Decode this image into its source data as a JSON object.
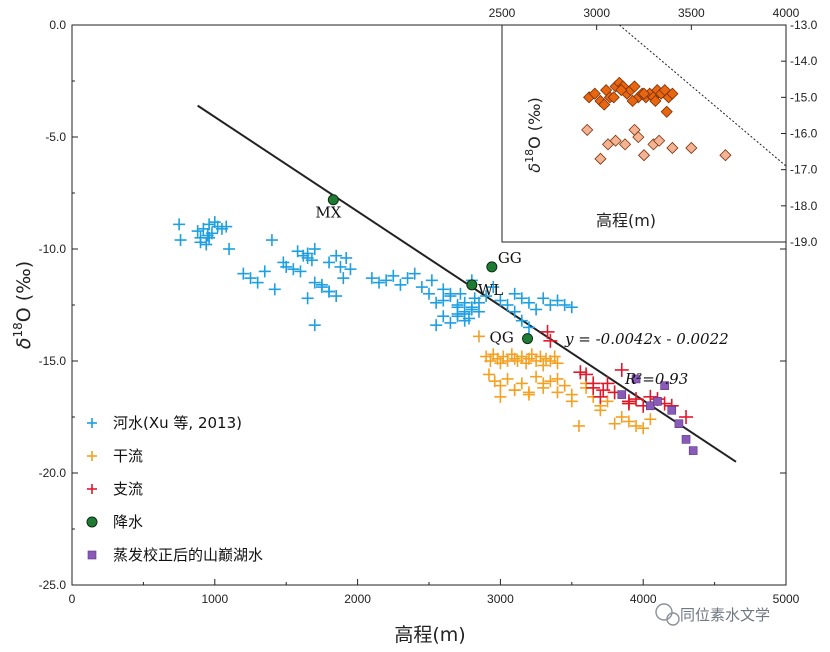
{
  "chart_data": [
    {
      "type": "scatter",
      "xlabel": "高程(m)",
      "ylabel_base": "δ",
      "ylabel_sup": "18",
      "ylabel_tail": "O (‰)",
      "xlim": [
        0,
        5000
      ],
      "ylim": [
        -25,
        0
      ],
      "xticks": [
        0,
        1000,
        2000,
        3000,
        4000,
        5000
      ],
      "xtick_labels": [
        "0",
        "1000",
        "2000",
        "3000",
        "4000",
        "5000"
      ],
      "yticks": [
        0,
        -5,
        -10,
        -15,
        -20,
        -25
      ],
      "ytick_labels": [
        "0.0",
        "-5.0",
        "-10.0",
        "-15.0",
        "-20.0",
        "-25.0"
      ],
      "regression_line": {
        "x": [
          880,
          4650
        ],
        "y": [
          -3.6,
          -19.5
        ]
      },
      "equation": "y = -0.0042x - 0.0022",
      "r2": "R²=0.93",
      "series": [
        {
          "name": "河水(Xu 等, 2013)",
          "marker": "plus",
          "color": "#1e9fe0",
          "x": [
            750,
            760,
            880,
            900,
            920,
            940,
            960,
            980,
            1000,
            1050,
            1080,
            900,
            950,
            1020,
            960,
            1100,
            1200,
            1250,
            1300,
            1350,
            1400,
            1420,
            1480,
            1500,
            1550,
            1600,
            1650,
            1650,
            1700,
            1750,
            1800,
            1850,
            1900,
            1920,
            1950,
            1580,
            1620,
            1680,
            1700,
            1800,
            1850,
            1880,
            1700,
            1650,
            1750,
            1800,
            2100,
            2150,
            2200,
            2250,
            2300,
            2350,
            2400,
            2450,
            2500,
            2520,
            2550,
            2600,
            2650,
            2700,
            2720,
            2750,
            2780,
            2800,
            2820,
            2850,
            2900,
            2950,
            3000,
            3050,
            3100,
            3150,
            3200,
            3250,
            3300,
            3350,
            3400,
            3450,
            3500,
            2600,
            2650,
            2700,
            2750,
            2800,
            2550,
            2600,
            2700,
            2750,
            2800,
            2850,
            2650,
            2700,
            2750,
            3100,
            3150,
            3200
          ],
          "y": [
            -8.9,
            -9.6,
            -9.2,
            -9.5,
            -9.1,
            -9.8,
            -8.9,
            -9.3,
            -8.8,
            -9.1,
            -9.0,
            -9.7,
            -9.4,
            -9.0,
            -9.5,
            -10.0,
            -11.1,
            -11.3,
            -11.5,
            -11.0,
            -9.6,
            -11.8,
            -10.6,
            -10.8,
            -10.9,
            -11.0,
            -10.2,
            -10.4,
            -11.5,
            -11.7,
            -11.9,
            -12.1,
            -11.3,
            -10.4,
            -10.9,
            -10.1,
            -10.3,
            -10.5,
            -10.0,
            -10.6,
            -10.3,
            -10.8,
            -13.4,
            -12.2,
            -11.6,
            -11.9,
            -11.3,
            -11.5,
            -11.4,
            -11.2,
            -11.6,
            -11.3,
            -11.1,
            -11.7,
            -12.0,
            -11.4,
            -12.4,
            -11.8,
            -12.1,
            -12.5,
            -12.0,
            -12.8,
            -13.1,
            -12.6,
            -12.2,
            -12.4,
            -12.1,
            -11.7,
            -12.3,
            -12.5,
            -12.0,
            -12.2,
            -12.4,
            -12.7,
            -12.2,
            -12.5,
            -12.3,
            -12.5,
            -12.6,
            -13.0,
            -13.3,
            -12.9,
            -13.2,
            -12.7,
            -13.4,
            -12.3,
            -12.6,
            -12.9,
            -11.4,
            -12.8,
            -12.0,
            -13.0,
            -12.4,
            -12.8,
            -13.2,
            -13.5
          ]
        },
        {
          "name": "干流",
          "marker": "plus",
          "color": "#f5a020",
          "x": [
            2850,
            2900,
            2930,
            2950,
            2980,
            3000,
            3020,
            3050,
            3080,
            3100,
            3120,
            3150,
            3180,
            3200,
            3220,
            3250,
            3280,
            3300,
            3320,
            3350,
            3380,
            3400,
            2920,
            2960,
            3000,
            3050,
            3100,
            3150,
            3200,
            3250,
            3300,
            3350,
            3400,
            3450,
            3500,
            3550,
            3600,
            3650,
            3700,
            3750,
            3800,
            3850,
            3900,
            3950,
            4000,
            4050,
            3000,
            3100,
            3200,
            3300,
            3400,
            3500,
            3600,
            3700,
            3800,
            3900
          ],
          "y": [
            -13.9,
            -14.8,
            -15.0,
            -14.7,
            -14.9,
            -15.1,
            -14.8,
            -15.0,
            -14.7,
            -14.9,
            -15.0,
            -14.8,
            -15.1,
            -14.9,
            -14.7,
            -15.0,
            -14.8,
            -15.2,
            -14.9,
            -15.0,
            -14.8,
            -15.1,
            -15.6,
            -15.9,
            -16.1,
            -15.8,
            -16.3,
            -16.0,
            -16.4,
            -15.7,
            -16.2,
            -15.9,
            -16.4,
            -16.1,
            -16.5,
            -17.9,
            -16.0,
            -16.6,
            -17.2,
            -16.8,
            -17.8,
            -17.5,
            -17.7,
            -17.9,
            -18.0,
            -17.6,
            -16.6,
            -16.3,
            -16.5,
            -16.0,
            -15.8,
            -16.8,
            -16.2,
            -17.0,
            -16.4,
            -16.9
          ]
        },
        {
          "name": "支流",
          "marker": "plus",
          "color": "#e0182a",
          "x": [
            3330,
            3350,
            3560,
            3600,
            3650,
            3700,
            3750,
            3800,
            3850,
            3900,
            3950,
            4000,
            4050,
            4100,
            4200,
            4300,
            3650,
            3720,
            3900,
            4150
          ],
          "y": [
            -13.7,
            -14.1,
            -15.5,
            -15.6,
            -16.2,
            -16.6,
            -16.0,
            -16.4,
            -15.4,
            -16.9,
            -16.7,
            -17.0,
            -16.6,
            -16.7,
            -17.0,
            -17.5,
            -16.0,
            -16.3,
            -16.8,
            -16.9
          ],
          "marker_size": 7
        },
        {
          "name": "降水",
          "marker": "circle",
          "color": "#1f7a34",
          "x": [
            1830,
            2940,
            2800,
            3190
          ],
          "y": [
            -7.8,
            -10.8,
            -11.6,
            -14.0
          ],
          "labels": [
            "MX",
            "GG",
            "WL",
            "QG"
          ]
        },
        {
          "name": "蒸发校正后的山巅湖水",
          "marker": "square",
          "color": "#8a5ab8",
          "x": [
            3850,
            3950,
            4050,
            4100,
            4150,
            4200,
            4250,
            4300,
            4350
          ],
          "y": [
            -16.5,
            -15.8,
            -17.0,
            -16.8,
            -16.1,
            -17.2,
            -17.8,
            -18.5,
            -19.0
          ]
        }
      ]
    },
    {
      "type": "scatter",
      "xlabel": "高程(m)",
      "ylabel_base": "δ",
      "ylabel_sup": "18",
      "ylabel_tail": "O (‰)",
      "xlim": [
        2500,
        4000
      ],
      "ylim": [
        -19,
        -13
      ],
      "xticks": [
        2500,
        3000,
        3500,
        4000
      ],
      "xtick_labels": [
        "2500",
        "3000",
        "3500",
        "4000"
      ],
      "yticks": [
        -13,
        -14,
        -15,
        -16,
        -17,
        -18,
        -19
      ],
      "ytick_labels": [
        "-13.0",
        "-14.0",
        "-15.0",
        "-16.0",
        "-17.0",
        "-18.0",
        "-19.0"
      ],
      "dotted_line": {
        "x": [
          3120,
          4000
        ],
        "y": [
          -13,
          -16.9
        ]
      },
      "series": [
        {
          "marker": "diamond",
          "color": "#e8660f",
          "x": [
            2960,
            2990,
            3020,
            3050,
            3070,
            3100,
            3120,
            3140,
            3160,
            3180,
            3200,
            3220,
            3240,
            3260,
            3280,
            3300,
            3320,
            3340,
            3360,
            3380,
            3400,
            3040,
            3090,
            3130,
            3190,
            3250,
            3310,
            3370
          ],
          "y": [
            -15.0,
            -14.9,
            -15.1,
            -14.8,
            -15.0,
            -14.7,
            -14.6,
            -14.7,
            -14.9,
            -14.8,
            -14.7,
            -15.0,
            -14.9,
            -15.0,
            -14.9,
            -15.0,
            -14.8,
            -14.9,
            -14.8,
            -15.0,
            -14.9,
            -15.2,
            -15.0,
            -14.8,
            -15.1,
            -14.9,
            -15.1,
            -15.4
          ]
        },
        {
          "marker": "diamond",
          "color": "#f4b393",
          "x": [
            2950,
            3020,
            3060,
            3100,
            3150,
            3200,
            3220,
            3250,
            3300,
            3330,
            3400,
            3500,
            3680
          ],
          "y": [
            -15.9,
            -16.7,
            -16.3,
            -16.2,
            -16.3,
            -15.9,
            -16.1,
            -16.6,
            -16.3,
            -16.2,
            -16.4,
            -16.4,
            -16.6
          ]
        }
      ]
    }
  ],
  "legend": [
    {
      "label": "河水(Xu 等, 2013)",
      "marker": "plus",
      "color": "#1e9fe0"
    },
    {
      "label": "干流",
      "marker": "plus",
      "color": "#f5a020"
    },
    {
      "label": "支流",
      "marker": "plus",
      "color": "#e0182a"
    },
    {
      "label": "降水",
      "marker": "circle",
      "color": "#1f7a34"
    },
    {
      "label": "蒸发校正后的山巅湖水",
      "marker": "square",
      "color": "#8a5ab8"
    }
  ],
  "watermark": "同位素水文学"
}
